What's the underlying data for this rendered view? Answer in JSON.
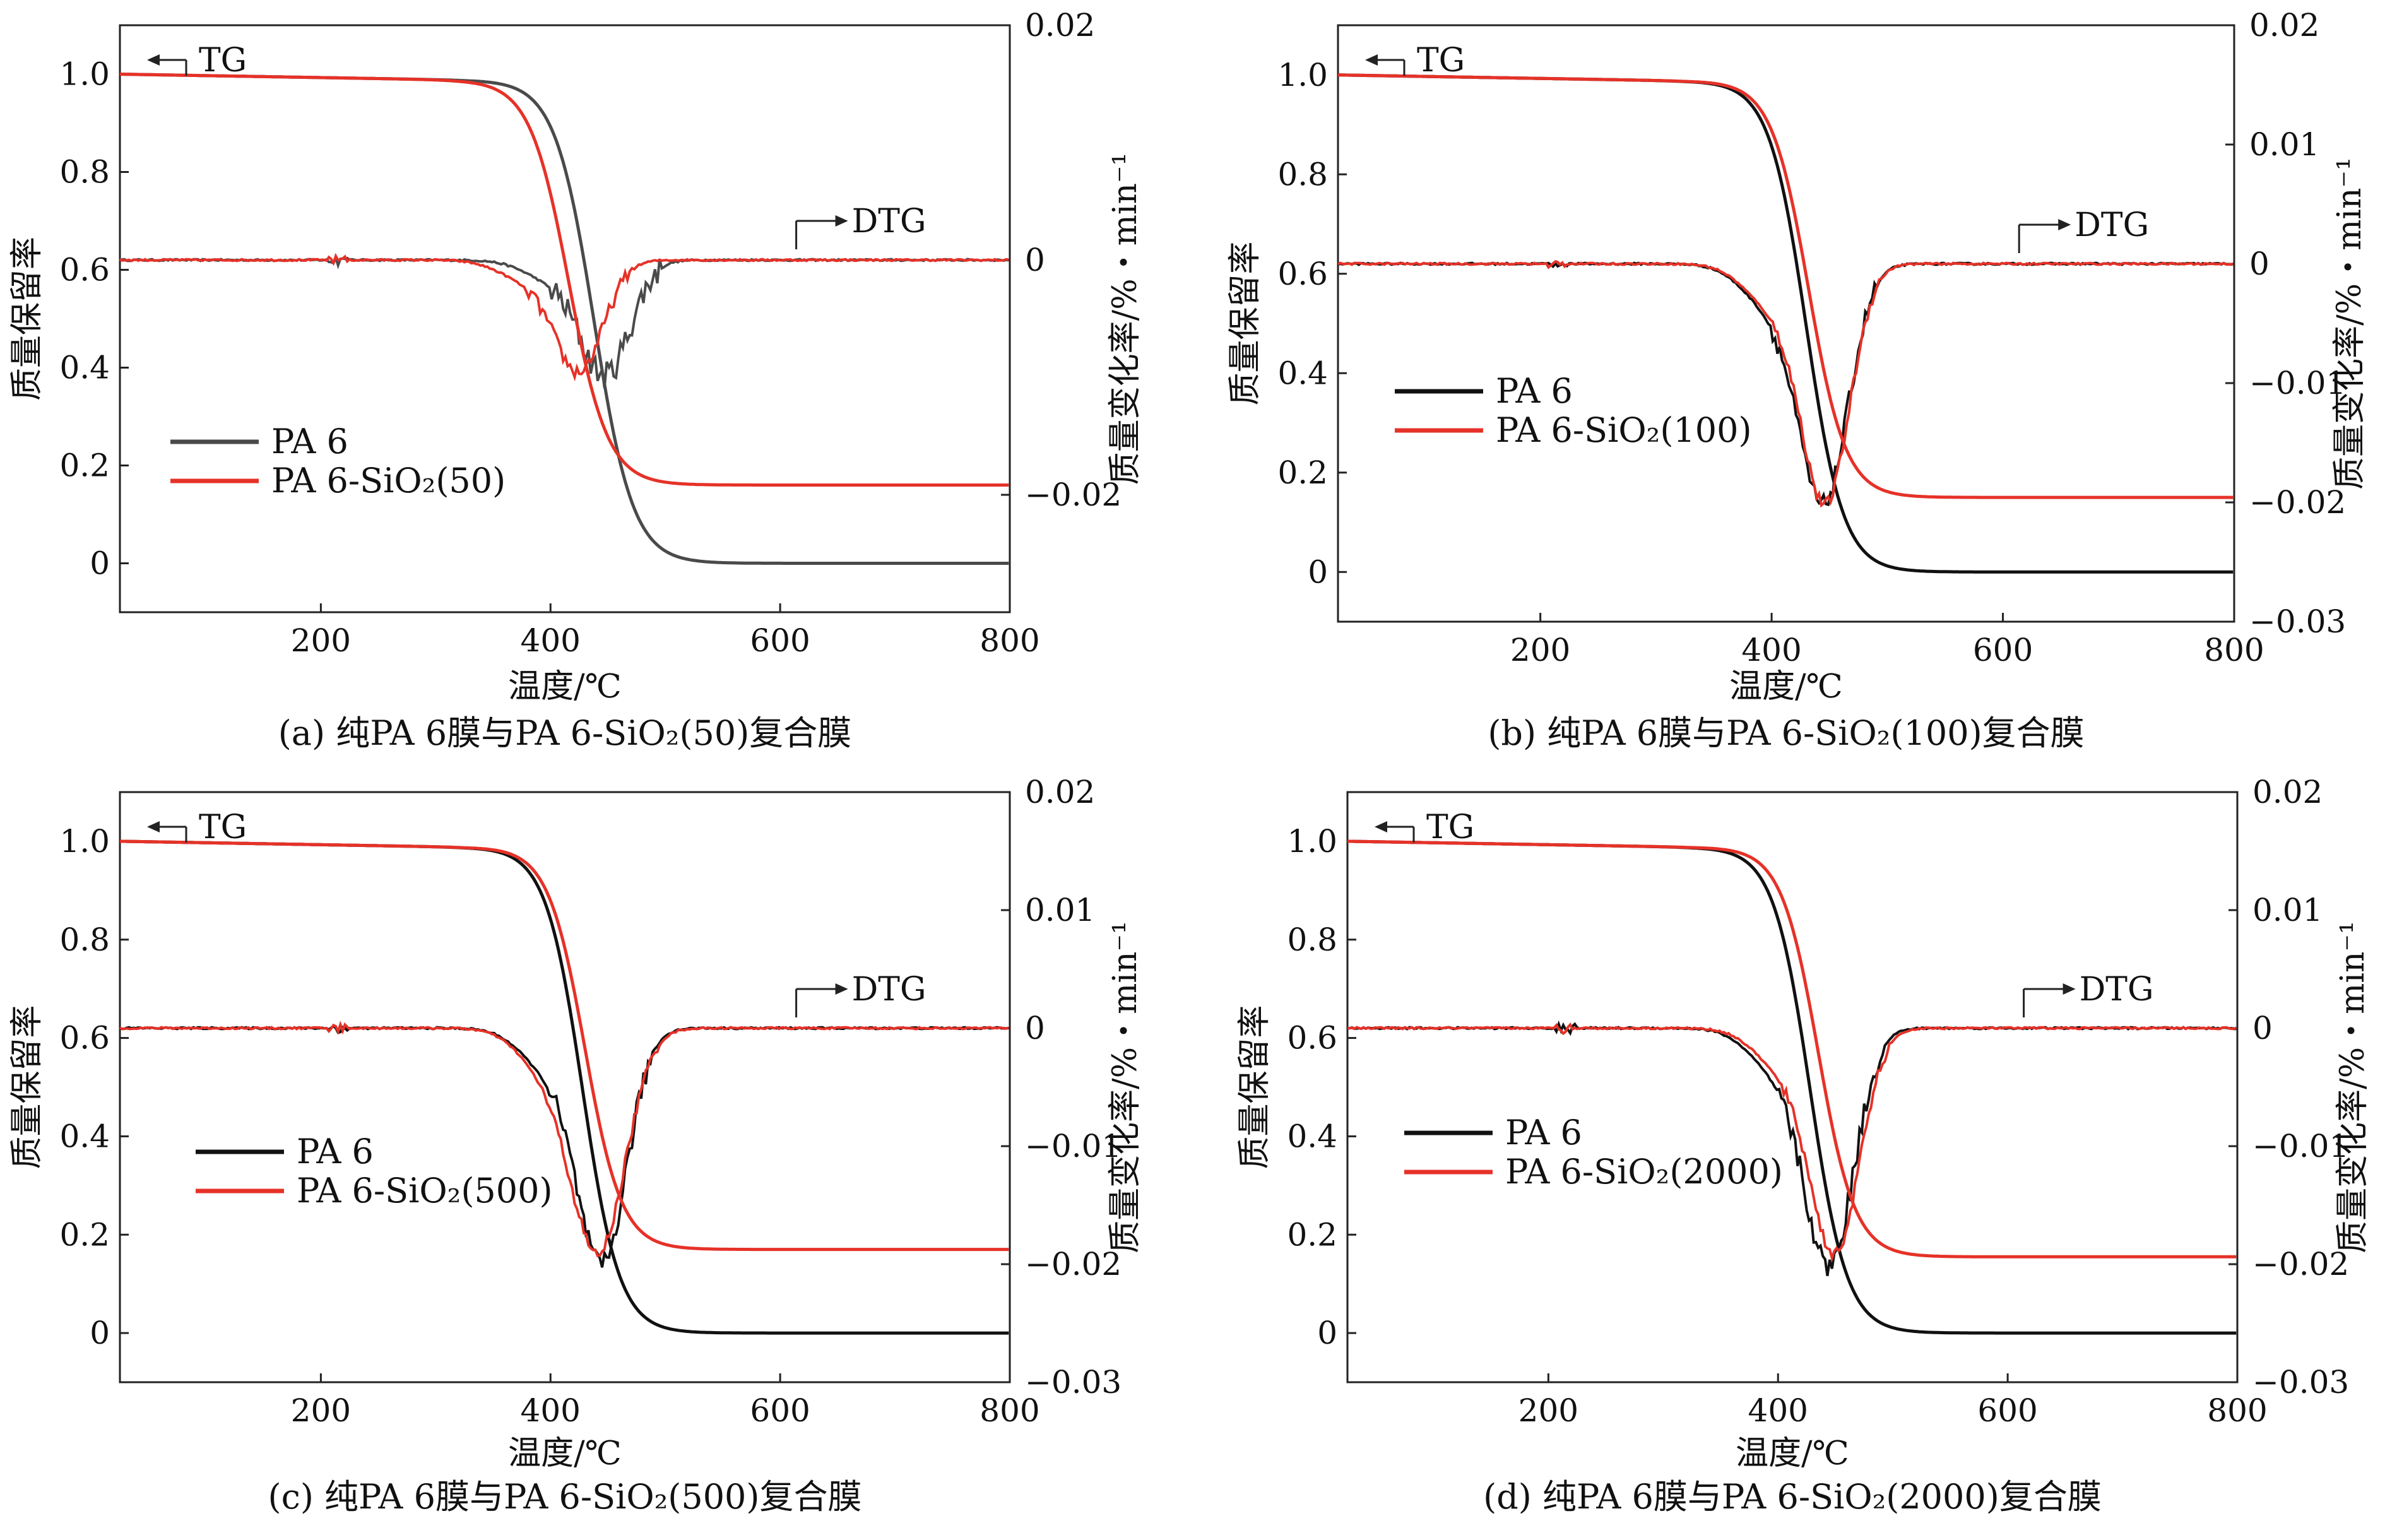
{
  "figure": {
    "background": "#ffffff",
    "axis_color": "#222222"
  },
  "chart_data": [
    {
      "type": "line",
      "panel": "a",
      "caption": "(a) 纯PA 6膜与PA 6-SiO₂(50)复合膜",
      "xlabel": "温度/℃",
      "ylabel_left": "质量保留率",
      "ylabel_right": "质量变化率/%・min⁻¹",
      "xlim": [
        25,
        800
      ],
      "ylim_left": [
        -0.1,
        1.1
      ],
      "ylim_right": [
        -0.03,
        0.02
      ],
      "xticks": [
        "200",
        "400",
        "600",
        "800"
      ],
      "yticks_left": [
        "0",
        "0.2",
        "0.4",
        "0.6",
        "0.8",
        "1.0"
      ],
      "yticks_right": [
        "0.02",
        "0",
        "−0.02"
      ],
      "tg_label": "TG",
      "dtg_label": "DTG",
      "legend": [
        "PA 6",
        "PA 6-SiO₂(50)"
      ],
      "series": [
        {
          "name": "PA 6",
          "color": "#4a4a4a",
          "tg": {
            "onset": 385,
            "mid": 438,
            "width": 17,
            "residue": 0.0
          },
          "dtg": {
            "center": 448,
            "depth": 0.0095,
            "width": 30,
            "noise": 0.0012
          }
        },
        {
          "name": "PA 6-SiO₂(50)",
          "color": "#e63228",
          "tg": {
            "onset": 360,
            "mid": 416,
            "width": 17,
            "residue": 0.16
          },
          "dtg": {
            "center": 425,
            "depth": 0.0092,
            "width": 30,
            "noise": 0.0006
          }
        }
      ]
    },
    {
      "type": "line",
      "panel": "b",
      "caption": "(b) 纯PA 6膜与PA 6-SiO₂(100)复合膜",
      "xlabel": "温度/℃",
      "ylabel_left": "质量保留率",
      "ylabel_right": "质量变化率/%・min⁻¹",
      "xlim": [
        25,
        800
      ],
      "ylim_left": [
        -0.1,
        1.1
      ],
      "ylim_right": [
        -0.03,
        0.02
      ],
      "xticks": [
        "200",
        "400",
        "600",
        "800"
      ],
      "yticks_left": [
        "0",
        "0.2",
        "0.4",
        "0.6",
        "0.8",
        "1.0"
      ],
      "yticks_right": [
        "0.02",
        "0.01",
        "0",
        "−0.01",
        "−0.02",
        "−0.03"
      ],
      "tg_label": "TG",
      "dtg_label": "DTG",
      "legend": [
        "PA 6",
        "PA 6-SiO₂(100)"
      ],
      "series": [
        {
          "name": "PA 6",
          "color": "#111111",
          "tg": {
            "onset": 395,
            "mid": 430,
            "width": 16,
            "residue": 0.0
          },
          "dtg": {
            "center": 445,
            "depth": 0.0195,
            "width": 30,
            "noise": 0.0008
          }
        },
        {
          "name": "PA 6-SiO₂(100)",
          "color": "#e63228",
          "tg": {
            "onset": 400,
            "mid": 432,
            "width": 16,
            "residue": 0.15
          },
          "dtg": {
            "center": 447,
            "depth": 0.0195,
            "width": 29,
            "noise": 0.0005
          }
        }
      ]
    },
    {
      "type": "line",
      "panel": "c",
      "caption": "(c) 纯PA 6膜与PA 6-SiO₂(500)复合膜",
      "xlabel": "温度/℃",
      "ylabel_left": "质量保留率",
      "ylabel_right": "质量变化率/%・min⁻¹",
      "xlim": [
        25,
        800
      ],
      "ylim_left": [
        -0.1,
        1.1
      ],
      "ylim_right": [
        -0.03,
        0.02
      ],
      "xticks": [
        "200",
        "400",
        "600",
        "800"
      ],
      "yticks_left": [
        "0",
        "0.2",
        "0.4",
        "0.6",
        "0.8",
        "1.0"
      ],
      "yticks_right": [
        "0.02",
        "0.01",
        "0",
        "−0.01",
        "−0.02",
        "−0.03"
      ],
      "tg_label": "TG",
      "dtg_label": "DTG",
      "legend": [
        "PA 6",
        "PA 6-SiO₂(500)"
      ],
      "series": [
        {
          "name": "PA 6",
          "color": "#111111",
          "tg": {
            "onset": 390,
            "mid": 428,
            "width": 16,
            "residue": 0.0
          },
          "dtg": {
            "center": 445,
            "depth": 0.0195,
            "width": 30,
            "noise": 0.001
          }
        },
        {
          "name": "PA 6-SiO₂(500)",
          "color": "#e63228",
          "tg": {
            "onset": 395,
            "mid": 430,
            "width": 16,
            "residue": 0.17
          },
          "dtg": {
            "center": 442,
            "depth": 0.0185,
            "width": 33,
            "noise": 0.0005
          }
        }
      ]
    },
    {
      "type": "line",
      "panel": "d",
      "caption": "(d) 纯PA 6膜与PA 6-SiO₂(2000)复合膜",
      "xlabel": "温度/℃",
      "ylabel_left": "质量保留率",
      "ylabel_right": "质量变化率/%・min⁻¹",
      "xlim": [
        25,
        800
      ],
      "ylim_left": [
        -0.1,
        1.1
      ],
      "ylim_right": [
        -0.03,
        0.02
      ],
      "xticks": [
        "200",
        "400",
        "600",
        "800"
      ],
      "yticks_left": [
        "0",
        "0.2",
        "0.4",
        "0.6",
        "0.8",
        "1.0"
      ],
      "yticks_right": [
        "0.02",
        "0.01",
        "0",
        "−0.01",
        "−0.02",
        "−0.03"
      ],
      "tg_label": "TG",
      "dtg_label": "DTG",
      "legend": [
        "PA 6",
        "PA 6-SiO₂(2000)"
      ],
      "series": [
        {
          "name": "PA 6",
          "color": "#111111",
          "tg": {
            "onset": 390,
            "mid": 428,
            "width": 16,
            "residue": 0.0
          },
          "dtg": {
            "center": 445,
            "depth": 0.0195,
            "width": 30,
            "noise": 0.001
          }
        },
        {
          "name": "PA 6-SiO₂(2000)",
          "color": "#e63228",
          "tg": {
            "onset": 398,
            "mid": 435,
            "width": 16,
            "residue": 0.155
          },
          "dtg": {
            "center": 450,
            "depth": 0.0185,
            "width": 30,
            "noise": 0.0005
          }
        }
      ]
    }
  ]
}
